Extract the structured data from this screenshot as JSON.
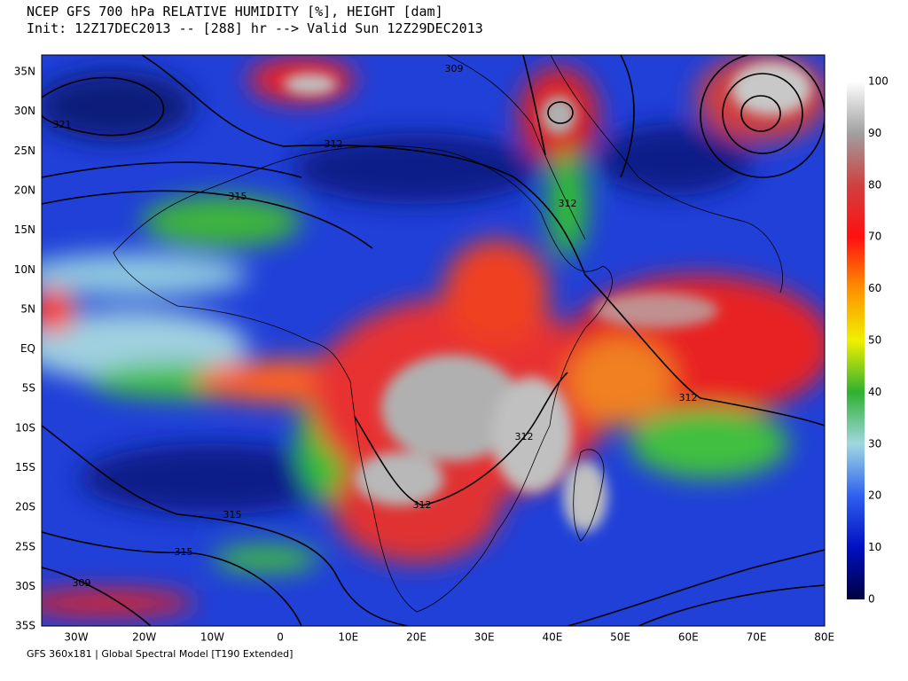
{
  "header": {
    "title": "NCEP GFS 700 hPa RELATIVE HUMIDITY [%], HEIGHT [dam]",
    "subtitle": "Init: 12Z17DEC2013 -- [288] hr --> Valid Sun 12Z29DEC2013"
  },
  "map": {
    "lat_labels": [
      "35N",
      "30N",
      "25N",
      "20N",
      "15N",
      "10N",
      "5N",
      "EQ",
      "5S",
      "10S",
      "15S",
      "20S",
      "25S",
      "30S",
      "35S"
    ],
    "lon_labels": [
      "30W",
      "20W",
      "10W",
      "0",
      "10E",
      "20E",
      "30E",
      "40E",
      "50E",
      "60E",
      "70E",
      "80E"
    ],
    "contour_labels": [
      "309",
      "312",
      "321",
      "315",
      "312",
      "312",
      "312",
      "312",
      "315",
      "315",
      "309"
    ]
  },
  "colorbar": {
    "ticks": [
      0,
      10,
      20,
      30,
      40,
      50,
      60,
      70,
      80,
      90,
      100
    ]
  },
  "footer": "GFS 360x181 | Global Spectral Model [T190 Extended]"
}
